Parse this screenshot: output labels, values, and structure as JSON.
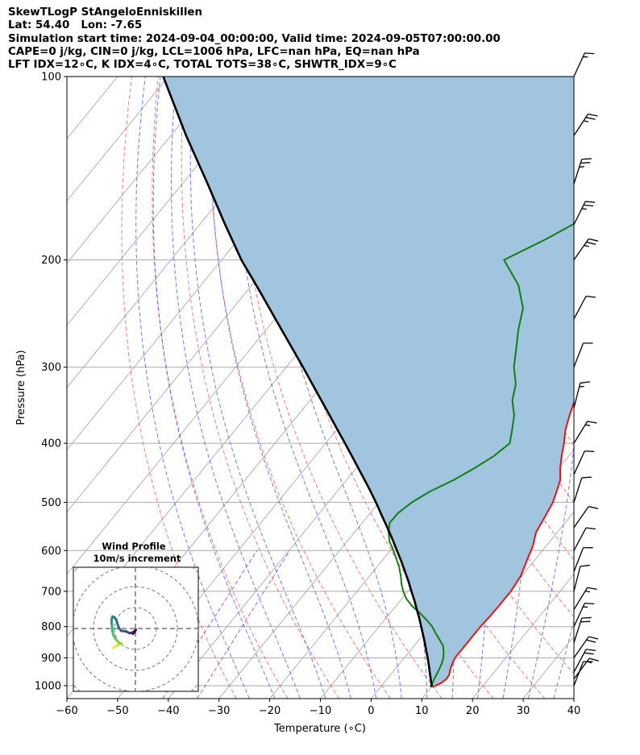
{
  "header": {
    "line1": "SkewTLogP StAngeloEnniskillen",
    "line2": "Lat: 54.40   Lon: -7.65",
    "line3": "Simulation start time: 2024-09-04_00:00:00, Valid time: 2024-09-05T07:00:00.00",
    "line4": "CAPE=0 j/kg, CIN=0 j/kg, LCL=1006 hPa, LFC=nan hPa, EQ=nan hPa",
    "line5": "LFT IDX=12∘C, K IDX=4∘C, TOTAL TOTS=38∘C, SHWTR_IDX=9∘C"
  },
  "colors": {
    "temperature": "#ee1111",
    "dewpoint": "#108010",
    "parcel": "#000000",
    "shade": "#a1c4df",
    "dry_adiabat": "#ff4444",
    "moist_adiabat": "#3344ff",
    "mixing_ratio": "#9933cc",
    "isotherm": "#aaaaaa"
  },
  "chart_data": {
    "type": "skewt",
    "xlabel": "Temperature (∘C)",
    "ylabel": "Pressure (hPa)",
    "xlim": [
      -60,
      40
    ],
    "ylim": [
      1050,
      100
    ],
    "x_ticks": [
      "−60",
      "−50",
      "−40",
      "−30",
      "−20",
      "−10",
      "0",
      "10",
      "20",
      "30",
      "40"
    ],
    "y_ticks": [
      "100",
      "200",
      "300",
      "400",
      "500",
      "600",
      "700",
      "800",
      "900",
      "1000"
    ],
    "temperature_profile": {
      "pressure": [
        1005,
        1000,
        990,
        975,
        960,
        940,
        920,
        900,
        880,
        860,
        830,
        800,
        770,
        740,
        700,
        660,
        620,
        590,
        560,
        530,
        500,
        480,
        460,
        440,
        420,
        400,
        380,
        360,
        340,
        320,
        300,
        290,
        270,
        250,
        230,
        210,
        200,
        180,
        160,
        150,
        140,
        130,
        120,
        110,
        100
      ],
      "temperature": [
        10.3,
        10.6,
        11.3,
        11.7,
        11.6,
        10.9,
        10.4,
        10.0,
        10.0,
        10.0,
        10.0,
        10.0,
        10.2,
        10.3,
        10.3,
        9.8,
        8.4,
        7.4,
        5.8,
        5.1,
        4.3,
        3.3,
        2.2,
        0.3,
        -1.4,
        -3.0,
        -4.9,
        -6.4,
        -7.8,
        -8.8,
        -9.5,
        -9.4,
        -9.6,
        -9.6,
        -8.9,
        -8.5,
        -8.5,
        -8.8,
        -9.7,
        -9.9,
        -10.3,
        -10.3,
        -10.0,
        -9.9,
        -10.0
      ]
    },
    "dewpoint_profile": {
      "pressure": [
        1005,
        990,
        970,
        950,
        920,
        900,
        880,
        860,
        840,
        820,
        800,
        780,
        760,
        740,
        720,
        700,
        680,
        660,
        640,
        620,
        600,
        580,
        560,
        540,
        520,
        500,
        480,
        460,
        440,
        420,
        400,
        380,
        360,
        340,
        320,
        300,
        280,
        260,
        240,
        220,
        200,
        185,
        170,
        150,
        130,
        115,
        100
      ],
      "dewpoint": [
        9.8,
        9.6,
        9.2,
        8.9,
        8.3,
        7.7,
        6.8,
        5.7,
        4.0,
        2.2,
        0.5,
        -1.7,
        -4.1,
        -6.8,
        -9.1,
        -10.9,
        -12.5,
        -13.9,
        -15.5,
        -17.4,
        -19.4,
        -21.6,
        -23.3,
        -24.6,
        -24.5,
        -23.5,
        -21.7,
        -18.9,
        -16.7,
        -14.8,
        -13.7,
        -15.4,
        -17.3,
        -20.1,
        -22.0,
        -25.1,
        -27.6,
        -30.3,
        -32.8,
        -37.4,
        -44.3,
        -39.4,
        -34.9,
        -28.5,
        -22.7,
        -19.8,
        -16.9
      ]
    },
    "parcel_profile": {
      "pressure": [
        1005,
        1000,
        975,
        950,
        925,
        900,
        875,
        850,
        825,
        800,
        775,
        750,
        725,
        700,
        675,
        650,
        625,
        600,
        575,
        550,
        525,
        500,
        475,
        450,
        425,
        400,
        375,
        350,
        325,
        300,
        275,
        250,
        225,
        200,
        175,
        150,
        125,
        100
      ],
      "temperature": [
        10.1,
        9.9,
        8.6,
        7.3,
        6.0,
        4.6,
        3.1,
        1.6,
        0.0,
        -1.7,
        -3.4,
        -5.3,
        -7.2,
        -9.3,
        -11.4,
        -13.7,
        -16.1,
        -18.7,
        -21.4,
        -24.3,
        -27.4,
        -30.6,
        -34.1,
        -37.9,
        -41.9,
        -46.2,
        -50.8,
        -55.7,
        -61.0,
        -66.7,
        -73.0,
        -79.9,
        -87.5,
        -96.1,
        -105.0,
        -115.0,
        -127.0,
        -141.0
      ]
    },
    "wind_barbs": [
      {
        "pressure": 1000,
        "speed_kt": 10
      },
      {
        "pressure": 975,
        "speed_kt": 15
      },
      {
        "pressure": 950,
        "speed_kt": 20
      },
      {
        "pressure": 900,
        "speed_kt": 20
      },
      {
        "pressure": 850,
        "speed_kt": 20
      },
      {
        "pressure": 800,
        "speed_kt": 15
      },
      {
        "pressure": 750,
        "speed_kt": 15
      },
      {
        "pressure": 700,
        "speed_kt": 10
      },
      {
        "pressure": 650,
        "speed_kt": 10
      },
      {
        "pressure": 600,
        "speed_kt": 10
      },
      {
        "pressure": 550,
        "speed_kt": 10
      },
      {
        "pressure": 500,
        "speed_kt": 10
      },
      {
        "pressure": 450,
        "speed_kt": 10
      },
      {
        "pressure": 400,
        "speed_kt": 15
      },
      {
        "pressure": 350,
        "speed_kt": 15
      },
      {
        "pressure": 300,
        "speed_kt": 10
      },
      {
        "pressure": 250,
        "speed_kt": 10
      },
      {
        "pressure": 200,
        "speed_kt": 25
      },
      {
        "pressure": 175,
        "speed_kt": 25
      },
      {
        "pressure": 150,
        "speed_kt": 25
      },
      {
        "pressure": 125,
        "speed_kt": 25
      },
      {
        "pressure": 100,
        "speed_kt": 15
      }
    ],
    "hodograph": {
      "title_line1": "Wind Profile",
      "title_line2": "10m/s increment",
      "ring_step_ms": 10,
      "u": [
        -10.6,
        -9.0,
        -7.5,
        -6.8,
        -7.5,
        -8.3,
        -9.5,
        -10.4,
        -10.9,
        -11.1,
        -11.2,
        -11.4,
        -11.3,
        -10.9,
        -10.0,
        -9.2,
        -7.9,
        -6.8,
        -4.5,
        -2.8,
        -1.4,
        -0.1,
        0.2,
        -0.2,
        -1.2
      ],
      "v": [
        -9.3,
        -8.2,
        -7.5,
        -6.9,
        -7.2,
        -6.3,
        -5.0,
        -3.5,
        -1.5,
        0.3,
        1.5,
        3.0,
        4.6,
        5.7,
        5.3,
        4.2,
        0.3,
        -1.1,
        -1.4,
        -2.2,
        -2.0,
        -1.0,
        -0.6,
        -1.4,
        -2.5
      ]
    }
  }
}
